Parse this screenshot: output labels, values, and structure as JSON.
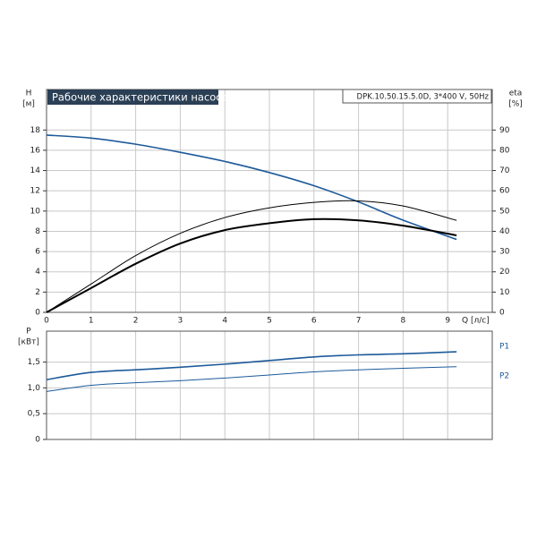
{
  "chart_data": [
    {
      "type": "line",
      "title": "Рабочие характеристики насоса",
      "annotation": "DPK.10.50.15.5.0D, 3*400 V, 50Hz",
      "y_label": "H",
      "y_unit": "[м]",
      "y2_label": "eta",
      "y2_unit": "[%]",
      "x_label": "Q [л/с]",
      "x": [
        0,
        1,
        2,
        3,
        4,
        5,
        6,
        7,
        8,
        9.2
      ],
      "xlim": [
        0,
        10
      ],
      "xticks": [
        0,
        1,
        2,
        3,
        4,
        5,
        6,
        7,
        8,
        9
      ],
      "ylim": [
        0,
        22
      ],
      "yticks": [
        0,
        2,
        4,
        6,
        8,
        10,
        12,
        14,
        16,
        18
      ],
      "y2lim": [
        0,
        110
      ],
      "y2ticks": [
        0,
        10,
        20,
        30,
        40,
        50,
        60,
        70,
        80,
        90
      ],
      "grid": true,
      "series": [
        {
          "color": "#1d5a9a",
          "width": 1.6,
          "values": [
            17.5,
            17.2,
            16.6,
            15.8,
            14.9,
            13.8,
            12.5,
            10.9,
            9.1,
            7.2
          ]
        },
        {
          "color": "#000000",
          "width": 1,
          "axis": "y2",
          "values": [
            0,
            14,
            28,
            39,
            46.8,
            51.6,
            54.3,
            55,
            52.5,
            45.4
          ]
        },
        {
          "color": "#000000",
          "width": 2,
          "axis": "y2",
          "values": [
            0,
            12,
            24,
            34,
            40.6,
            44,
            46,
            45.4,
            42.8,
            38
          ]
        }
      ]
    },
    {
      "type": "line",
      "y_label": "P",
      "y_unit": "[кВт]",
      "x": [
        0,
        1,
        2,
        3,
        4,
        5,
        6,
        7,
        8,
        9.2
      ],
      "xlim": [
        0,
        10
      ],
      "xticks": [
        0,
        1,
        2,
        3,
        4,
        5,
        6,
        7,
        8,
        9
      ],
      "ylim": [
        0,
        2.1
      ],
      "yticks": [
        0,
        {
          "value": 0.5,
          "label": "0,5"
        },
        {
          "value": 1,
          "label": "1,0"
        },
        {
          "value": 1.5,
          "label": "1,5"
        }
      ],
      "grid": true,
      "series": [
        {
          "name": "P1",
          "color": "#1d5a9a",
          "width": 1.6,
          "values": [
            1.16,
            1.3,
            1.35,
            1.4,
            1.46,
            1.53,
            1.6,
            1.64,
            1.66,
            1.7
          ]
        },
        {
          "name": "P2",
          "color": "#1d5a9a",
          "width": 1,
          "values": [
            0.93,
            1.05,
            1.1,
            1.14,
            1.19,
            1.25,
            1.31,
            1.35,
            1.38,
            1.41
          ]
        }
      ]
    }
  ]
}
